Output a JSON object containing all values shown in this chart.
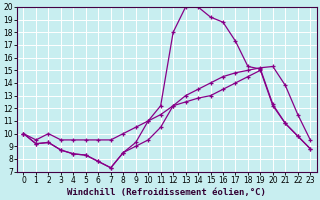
{
  "xlabel": "Windchill (Refroidissement éolien,°C)",
  "background_color": "#c8eef0",
  "line_color": "#880088",
  "grid_color": "#ffffff",
  "xlim": [
    -0.5,
    23.5
  ],
  "ylim": [
    7,
    20
  ],
  "xticks": [
    0,
    1,
    2,
    3,
    4,
    5,
    6,
    7,
    8,
    9,
    10,
    11,
    12,
    13,
    14,
    15,
    16,
    17,
    18,
    19,
    20,
    21,
    22,
    23
  ],
  "yticks": [
    7,
    8,
    9,
    10,
    11,
    12,
    13,
    14,
    15,
    16,
    17,
    18,
    19,
    20
  ],
  "hours": [
    0,
    1,
    2,
    3,
    4,
    5,
    6,
    7,
    8,
    9,
    10,
    11,
    12,
    13,
    14,
    15,
    16,
    17,
    18,
    19,
    20,
    21,
    22,
    23
  ],
  "curve1": [
    10.0,
    9.2,
    9.3,
    8.7,
    8.4,
    8.3,
    7.8,
    7.3,
    8.5,
    9.3,
    11.0,
    12.2,
    18.0,
    20.0,
    20.0,
    19.2,
    18.8,
    17.3,
    15.3,
    15.1,
    12.3,
    10.8,
    9.8,
    8.8
  ],
  "curve2": [
    10.0,
    9.5,
    10.0,
    9.5,
    9.5,
    9.5,
    9.5,
    9.5,
    10.0,
    10.5,
    11.0,
    11.5,
    12.2,
    13.0,
    13.5,
    14.0,
    14.5,
    14.8,
    15.0,
    15.2,
    15.3,
    13.8,
    11.5,
    9.5
  ],
  "curve3": [
    10.0,
    9.2,
    9.3,
    8.7,
    8.4,
    8.3,
    7.8,
    7.3,
    8.5,
    9.0,
    9.5,
    10.5,
    12.2,
    12.5,
    12.8,
    13.0,
    13.5,
    14.0,
    14.5,
    15.0,
    12.2,
    10.8,
    9.8,
    8.8
  ],
  "xlabel_fontsize": 6.5,
  "tick_fontsize": 5.5
}
